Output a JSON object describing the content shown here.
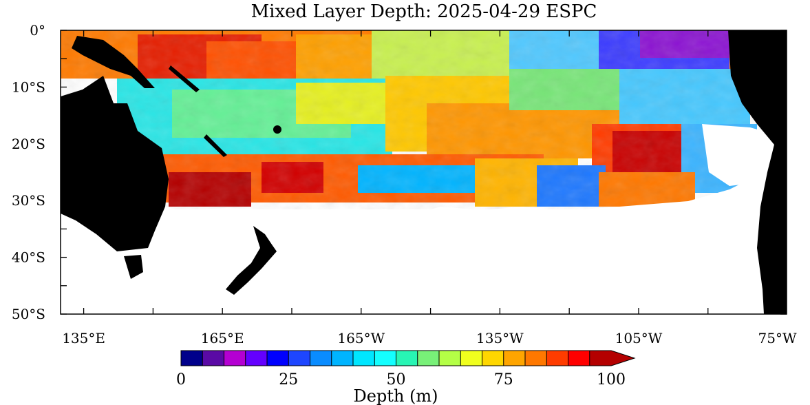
{
  "title": "Mixed Layer Depth: 2025-04-29 ESPC",
  "map": {
    "lat_labels": [
      "0°",
      "10°S",
      "20°S",
      "30°S",
      "40°S",
      "50°S"
    ],
    "lon_labels": [
      "135°E",
      "165°E",
      "165°W",
      "135°W",
      "105°W",
      "75°W"
    ],
    "lat_range": [
      -50,
      0
    ],
    "lon_range": [
      130,
      287
    ],
    "land_color": "#000000",
    "missing_color": "#ffffff"
  },
  "colorbar": {
    "title": "Depth (m)",
    "labels": [
      "0",
      "25",
      "50",
      "75",
      "100"
    ],
    "range": [
      0,
      100
    ],
    "colors": [
      "#00008b",
      "#5a0aa5",
      "#b400d2",
      "#6400ff",
      "#0000ff",
      "#1e46ff",
      "#0a8cff",
      "#00b4ff",
      "#00e6ff",
      "#14ffff",
      "#28f5b4",
      "#78f078",
      "#b4ff46",
      "#f0ff1e",
      "#ffd700",
      "#ffa500",
      "#ff7800",
      "#ff3c00",
      "#ff0000",
      "#b40000"
    ]
  }
}
